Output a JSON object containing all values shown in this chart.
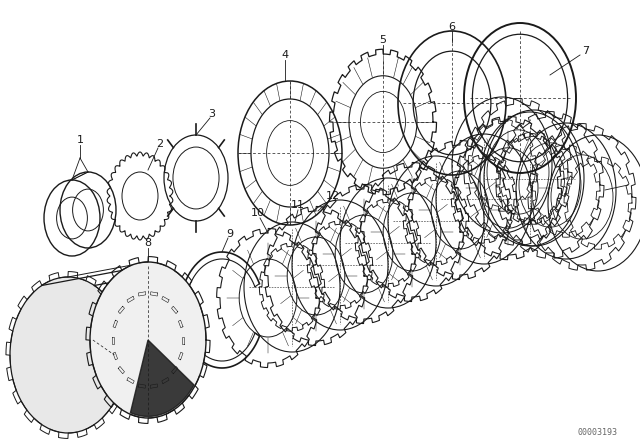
{
  "background_color": "#ffffff",
  "line_color": "#1a1a1a",
  "watermark": "00003193",
  "fig_width": 6.4,
  "fig_height": 4.48,
  "dpi": 100
}
